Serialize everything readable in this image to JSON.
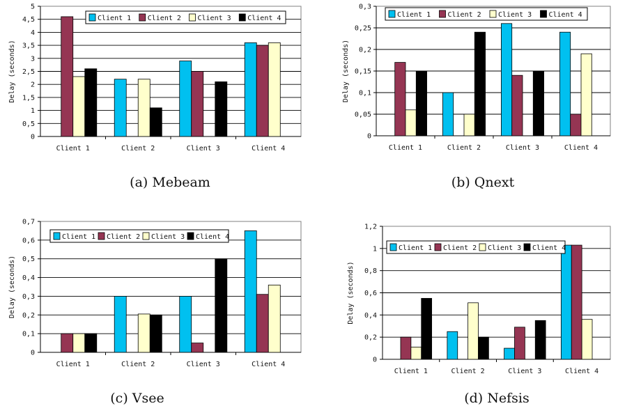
{
  "colors": {
    "Client 1": "#00c0f0",
    "Client 2": "#953553",
    "Client 3": "#ffffcc",
    "Client 4": "#000000"
  },
  "chart_data": [
    {
      "type": "bar",
      "caption": "(a) Mebeam",
      "ylabel": "Delay (seconds)",
      "ylim": [
        0,
        5
      ],
      "ytick_step": 0.5,
      "ytick_labels": [
        "0",
        "0,5",
        "1",
        "1,5",
        "2",
        "2,5",
        "3",
        "3,5",
        "4",
        "4,5",
        "5"
      ],
      "categories": [
        "Client 1",
        "Client 2",
        "Client 3",
        "Client 4"
      ],
      "series": [
        {
          "name": "Client 1",
          "values": [
            0,
            2.2,
            2.9,
            3.6
          ]
        },
        {
          "name": "Client 2",
          "values": [
            4.6,
            0,
            2.5,
            3.5
          ]
        },
        {
          "name": "Client 3",
          "values": [
            2.3,
            2.2,
            0,
            3.6
          ]
        },
        {
          "name": "Client 4",
          "values": [
            2.6,
            1.1,
            2.1,
            0
          ]
        }
      ],
      "legend": "top"
    },
    {
      "type": "bar",
      "caption": "(b) Qnext",
      "ylabel": "Delay (seconds)",
      "ylim": [
        0,
        0.3
      ],
      "ytick_step": 0.05,
      "ytick_labels": [
        "0",
        "0,05",
        "0,1",
        "0,15",
        "0,2",
        "0,25",
        "0,3"
      ],
      "categories": [
        "Client 1",
        "Client 2",
        "Client 3",
        "Client 4"
      ],
      "series": [
        {
          "name": "Client 1",
          "values": [
            0,
            0.1,
            0.26,
            0.24
          ]
        },
        {
          "name": "Client 2",
          "values": [
            0.17,
            0,
            0.14,
            0.05
          ]
        },
        {
          "name": "Client 3",
          "values": [
            0.06,
            0.05,
            0,
            0.19
          ]
        },
        {
          "name": "Client 4",
          "values": [
            0.15,
            0.24,
            0.15,
            0
          ]
        }
      ],
      "legend": "top"
    },
    {
      "type": "bar",
      "caption": "(c) Vsee",
      "ylabel": "Delay (seconds)",
      "ylim": [
        0,
        0.7
      ],
      "ytick_step": 0.1,
      "ytick_labels": [
        "0",
        "0,1",
        "0,2",
        "0,3",
        "0,4",
        "0,5",
        "0,6",
        "0,7"
      ],
      "categories": [
        "Client 1",
        "Client 2",
        "Client 3",
        "Client 4"
      ],
      "series": [
        {
          "name": "Client 1",
          "values": [
            0,
            0.3,
            0.3,
            0.65
          ]
        },
        {
          "name": "Client 2",
          "values": [
            0.1,
            0,
            0.05,
            0.31
          ]
        },
        {
          "name": "Client 3",
          "values": [
            0.1,
            0.205,
            0,
            0.36
          ]
        },
        {
          "name": "Client 4",
          "values": [
            0.1,
            0.2,
            0.5,
            0
          ]
        }
      ],
      "legend": "top"
    },
    {
      "type": "bar",
      "caption": "(d) Nefsis",
      "ylabel": "Delay (seconds)",
      "ylim": [
        0,
        1.2
      ],
      "ytick_step": 0.2,
      "ytick_labels": [
        "0",
        "0,2",
        "0,4",
        "0,6",
        "0,8",
        "1",
        "1,2"
      ],
      "categories": [
        "Client 1",
        "Client 2",
        "Client 3",
        "Client 4"
      ],
      "series": [
        {
          "name": "Client 1",
          "values": [
            0,
            0.25,
            0.1,
            1.03
          ]
        },
        {
          "name": "Client 2",
          "values": [
            0.2,
            0,
            0.29,
            1.03
          ]
        },
        {
          "name": "Client 3",
          "values": [
            0.11,
            0.51,
            0,
            0.36
          ]
        },
        {
          "name": "Client 4",
          "values": [
            0.55,
            0.2,
            0.35,
            0
          ]
        }
      ],
      "legend": "top"
    }
  ]
}
